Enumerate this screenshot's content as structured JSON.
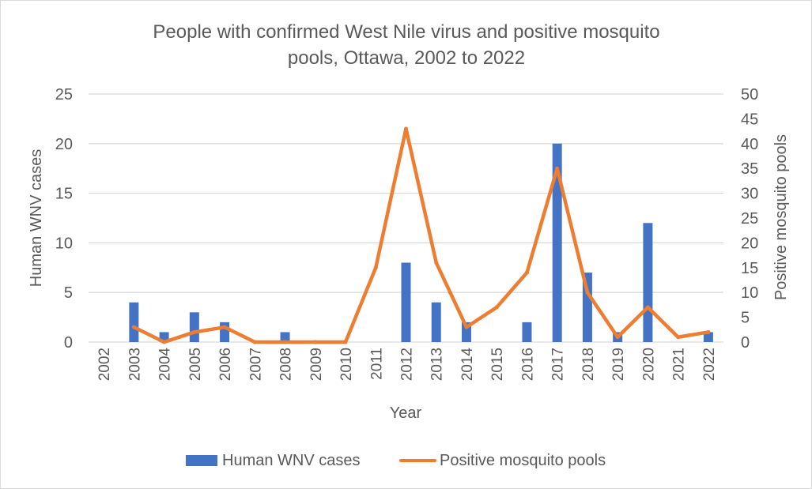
{
  "chart_data": {
    "type": "bar+line",
    "title": "People with confirmed West Nile virus and positive mosquito pools, Ottawa, 2002 to 2022",
    "title_lines": [
      "People with confirmed West Nile virus and positive mosquito",
      "pools, Ottawa, 2002 to 2022"
    ],
    "xlabel": "Year",
    "ylabel_left": "Human WNV cases",
    "ylabel_right": "Positive mosquito pools",
    "categories": [
      "2002",
      "2003",
      "2004",
      "2005",
      "2006",
      "2007",
      "2008",
      "2009",
      "2010",
      "2011",
      "2012",
      "2013",
      "2014",
      "2015",
      "2016",
      "2017",
      "2018",
      "2019",
      "2020",
      "2021",
      "2022"
    ],
    "ylim_left": [
      0,
      25
    ],
    "yticks_left": [
      "0",
      "5",
      "10",
      "15",
      "20",
      "25"
    ],
    "ylim_right": [
      0,
      50
    ],
    "yticks_right": [
      "0",
      "5",
      "10",
      "15",
      "20",
      "25",
      "30",
      "35",
      "40",
      "45",
      "50"
    ],
    "grid": true,
    "legend_position": "bottom",
    "series": [
      {
        "name": "Human WNV cases",
        "type": "bar",
        "axis": "left",
        "color": "#4472C4",
        "values": [
          0,
          4,
          1,
          3,
          2,
          0,
          1,
          0,
          0,
          0,
          8,
          4,
          2,
          0,
          2,
          20,
          7,
          1,
          12,
          0,
          1
        ]
      },
      {
        "name": "Positive mosquito pools",
        "type": "line",
        "axis": "right",
        "color": "#ED7D31",
        "values": [
          null,
          3,
          0,
          2,
          3,
          0,
          0,
          0,
          0,
          15,
          43,
          16,
          3,
          7,
          14,
          35,
          10,
          1,
          7,
          1,
          2
        ]
      }
    ]
  }
}
